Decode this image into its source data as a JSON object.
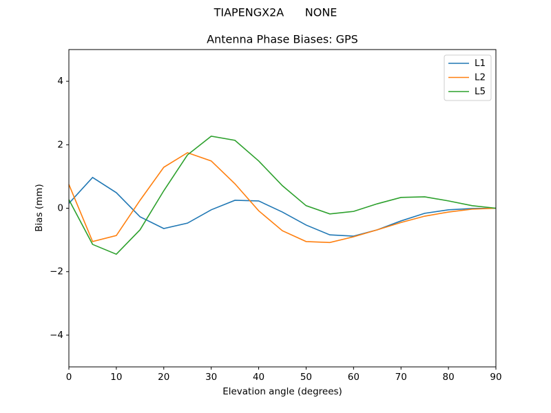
{
  "chart_data": {
    "type": "line",
    "suptitle": "TIAPENGX2A      NONE",
    "title": "Antenna Phase Biases: GPS",
    "xlabel": "Elevation angle (degrees)",
    "ylabel": "Bias (mm)",
    "x": [
      0,
      5,
      10,
      15,
      20,
      25,
      30,
      35,
      40,
      45,
      50,
      55,
      60,
      65,
      70,
      75,
      80,
      85,
      90
    ],
    "series": [
      {
        "name": "L1",
        "color": "#1f77b4",
        "values": [
          0.15,
          0.97,
          0.49,
          -0.27,
          -0.64,
          -0.47,
          -0.05,
          0.25,
          0.23,
          -0.12,
          -0.53,
          -0.84,
          -0.88,
          -0.68,
          -0.4,
          -0.16,
          -0.05,
          -0.01,
          0
        ]
      },
      {
        "name": "L2",
        "color": "#ff7f0e",
        "values": [
          0.75,
          -1.05,
          -0.86,
          0.25,
          1.29,
          1.75,
          1.49,
          0.77,
          -0.08,
          -0.71,
          -1.05,
          -1.08,
          -0.9,
          -0.68,
          -0.45,
          -0.25,
          -0.12,
          -0.03,
          0
        ]
      },
      {
        "name": "L5",
        "color": "#2ca02c",
        "values": [
          0.27,
          -1.14,
          -1.45,
          -0.68,
          0.55,
          1.68,
          2.27,
          2.14,
          1.49,
          0.71,
          0.08,
          -0.18,
          -0.1,
          0.14,
          0.34,
          0.36,
          0.23,
          0.08,
          0
        ]
      }
    ],
    "xlim": [
      0,
      90
    ],
    "xticks": [
      0,
      10,
      20,
      30,
      40,
      50,
      60,
      70,
      80,
      90
    ],
    "ylim": [
      -5,
      5
    ],
    "yticks": [
      {
        "value": -4,
        "label": "−4"
      },
      {
        "value": -2,
        "label": "−2"
      },
      0,
      2,
      4
    ],
    "grid": false,
    "legend": "upper right"
  }
}
